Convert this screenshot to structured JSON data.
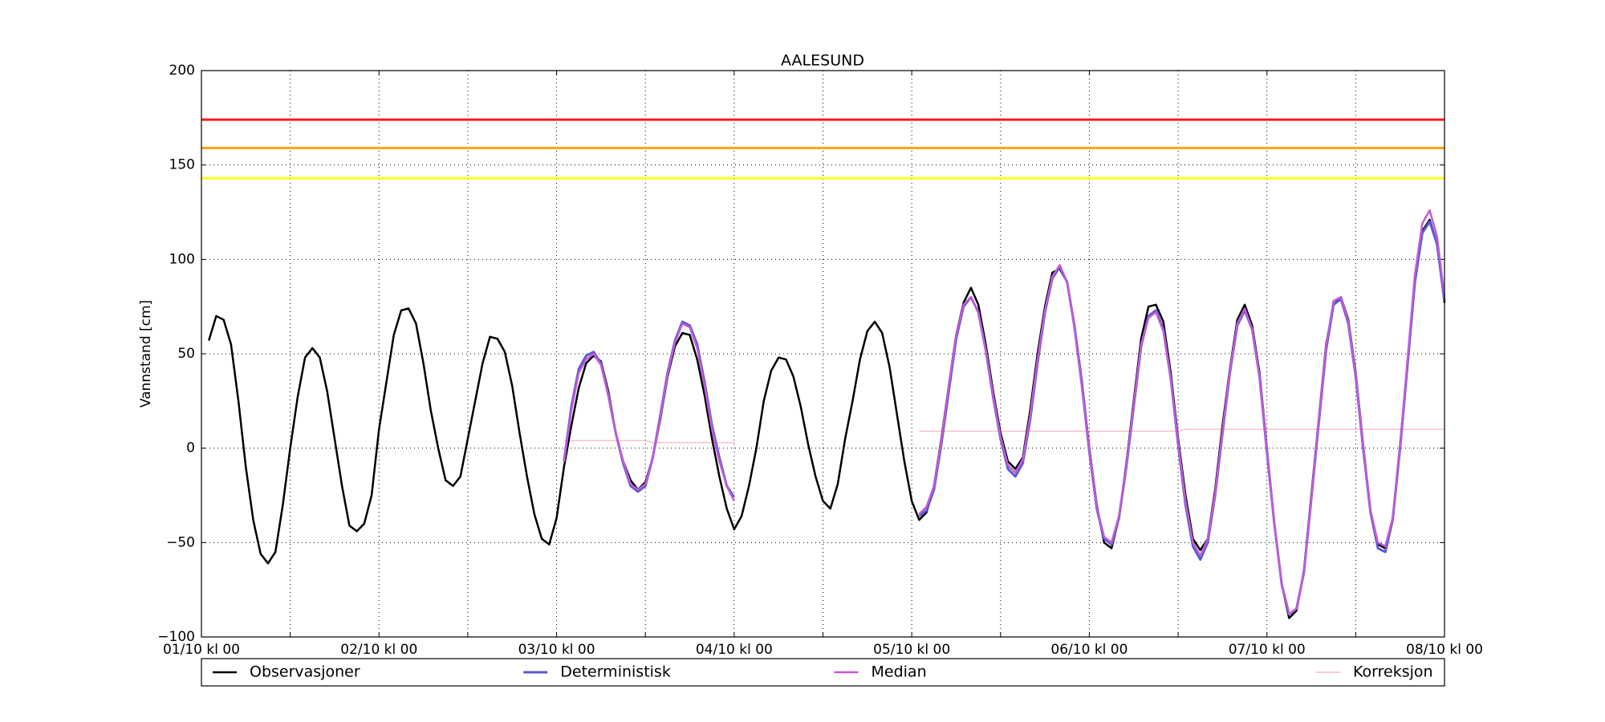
{
  "chart_data": {
    "type": "line",
    "title": "AALESUND",
    "y_label": "Vannstand [cm]",
    "x": [
      1,
      2,
      3,
      4,
      5,
      6,
      7,
      8,
      9,
      10,
      11,
      12,
      13,
      14,
      15,
      16,
      17,
      18,
      19,
      20,
      21,
      22,
      23,
      24,
      25,
      26,
      27,
      28,
      29,
      30,
      31,
      32,
      33,
      34,
      35,
      36,
      37,
      38,
      39,
      40,
      41,
      42,
      43,
      44,
      45,
      46,
      47,
      48,
      49,
      50,
      51,
      52,
      53,
      54,
      55,
      56,
      57,
      58,
      59,
      60,
      61,
      62,
      63,
      64,
      65,
      66,
      67,
      68,
      69,
      70,
      71,
      72,
      73,
      74,
      75,
      76,
      77,
      78,
      79,
      80,
      81,
      82,
      83,
      84,
      85,
      86,
      87,
      88,
      89,
      90,
      91,
      92,
      93,
      94,
      95,
      96,
      97,
      98,
      99,
      100,
      101,
      102,
      103,
      104,
      105,
      106,
      107,
      108,
      109,
      110,
      111,
      112,
      113,
      114,
      115,
      116,
      117,
      118,
      119,
      120,
      121,
      122,
      123,
      124,
      125,
      126,
      127,
      128,
      129,
      130,
      131,
      132,
      133,
      134,
      135,
      136,
      137,
      138,
      139,
      140,
      141,
      142,
      143,
      144,
      145,
      146,
      147,
      148,
      149,
      150,
      151,
      152,
      153,
      154,
      155,
      156,
      157,
      158,
      159,
      160,
      161,
      162,
      163,
      164,
      165,
      166,
      167,
      168
    ],
    "series": [
      {
        "name": "Observasjoner",
        "color": "#000000",
        "width": 2.5,
        "values": [
          57,
          70,
          68,
          55,
          25,
          -10,
          -38,
          -56,
          -61,
          -55,
          -30,
          0,
          27,
          48,
          53,
          48,
          30,
          5,
          -20,
          -41,
          -44,
          -40,
          -25,
          10,
          35,
          60,
          73,
          74,
          66,
          45,
          20,
          0,
          -17,
          -20,
          -15,
          5,
          25,
          45,
          59,
          58,
          51,
          33,
          8,
          -15,
          -35,
          -48,
          -51,
          -37,
          -10,
          12,
          32,
          45,
          49,
          46,
          30,
          8,
          -7,
          -17,
          -22,
          -18,
          -5,
          15,
          38,
          54,
          61,
          60,
          47,
          28,
          5,
          -15,
          -32,
          -43,
          -36,
          -20,
          0,
          25,
          41,
          48,
          47,
          38,
          22,
          2,
          -15,
          -28,
          -32,
          -19,
          5,
          25,
          47,
          62,
          67,
          61,
          43,
          18,
          -7,
          -28,
          -38,
          -34,
          -20,
          5,
          33,
          60,
          77,
          85,
          76,
          55,
          30,
          8,
          -7,
          -11,
          -5,
          20,
          50,
          75,
          93,
          95,
          88,
          65,
          35,
          0,
          -30,
          -50,
          -53,
          -37,
          -8,
          25,
          58,
          75,
          76,
          67,
          40,
          5,
          -25,
          -48,
          -54,
          -48,
          -22,
          12,
          42,
          68,
          76,
          65,
          40,
          0,
          -40,
          -72,
          -90,
          -86,
          -65,
          -25,
          15,
          55,
          76,
          80,
          68,
          40,
          2,
          -33,
          -51,
          -53,
          -37,
          2,
          45,
          90,
          115,
          121,
          108,
          77
        ]
      },
      {
        "name": "Deterministisk",
        "color": "#5a5ad6",
        "width": 3,
        "values": [
          null,
          null,
          null,
          null,
          null,
          null,
          null,
          null,
          null,
          null,
          null,
          null,
          null,
          null,
          null,
          null,
          null,
          null,
          null,
          null,
          null,
          null,
          null,
          null,
          null,
          null,
          null,
          null,
          null,
          null,
          null,
          null,
          null,
          null,
          null,
          null,
          null,
          null,
          null,
          null,
          null,
          null,
          null,
          null,
          null,
          null,
          null,
          null,
          -7,
          22,
          42,
          49,
          51,
          45,
          28,
          8,
          -8,
          -20,
          -23,
          -20,
          -5,
          17,
          40,
          57,
          67,
          65,
          55,
          35,
          12,
          -5,
          -20,
          -26,
          null,
          null,
          null,
          null,
          null,
          null,
          null,
          null,
          null,
          null,
          null,
          null,
          null,
          null,
          null,
          null,
          null,
          null,
          null,
          null,
          null,
          null,
          null,
          null,
          -36,
          -33,
          -22,
          2,
          30,
          58,
          75,
          80,
          72,
          52,
          27,
          5,
          -11,
          -15,
          -8,
          15,
          45,
          72,
          90,
          96,
          88,
          64,
          33,
          -2,
          -32,
          -48,
          -51,
          -37,
          -10,
          22,
          54,
          70,
          73,
          63,
          37,
          2,
          -30,
          -52,
          -59,
          -50,
          -25,
          8,
          40,
          65,
          73,
          63,
          38,
          -2,
          -40,
          -72,
          -88,
          -85,
          -66,
          -27,
          13,
          52,
          76,
          79,
          66,
          38,
          0,
          -34,
          -53,
          -55,
          -38,
          0,
          44,
          88,
          114,
          120,
          108,
          78
        ]
      },
      {
        "name": "Median",
        "color": "#c45ad6",
        "width": 2.5,
        "values": [
          null,
          null,
          null,
          null,
          null,
          null,
          null,
          null,
          null,
          null,
          null,
          null,
          null,
          null,
          null,
          null,
          null,
          null,
          null,
          null,
          null,
          null,
          null,
          null,
          null,
          null,
          null,
          null,
          null,
          null,
          null,
          null,
          null,
          null,
          null,
          null,
          null,
          null,
          null,
          null,
          null,
          null,
          null,
          null,
          null,
          null,
          null,
          null,
          -7,
          20,
          40,
          47,
          50,
          44,
          28,
          8,
          -7,
          -19,
          -22,
          -19,
          -5,
          16,
          39,
          56,
          66,
          64,
          53,
          33,
          10,
          -7,
          -20,
          -28,
          null,
          null,
          null,
          null,
          null,
          null,
          null,
          null,
          null,
          null,
          null,
          null,
          null,
          null,
          null,
          null,
          null,
          null,
          null,
          null,
          null,
          null,
          null,
          null,
          -35,
          -31,
          -20,
          4,
          33,
          60,
          76,
          80,
          72,
          52,
          28,
          6,
          -9,
          -13,
          -6,
          17,
          47,
          73,
          91,
          97,
          88,
          64,
          33,
          -1,
          -31,
          -47,
          -50,
          -36,
          -9,
          23,
          55,
          69,
          72,
          62,
          37,
          3,
          -28,
          -50,
          -57,
          -48,
          -24,
          9,
          41,
          66,
          74,
          63,
          38,
          -1,
          -40,
          -72,
          -88,
          -85,
          -66,
          -27,
          14,
          54,
          78,
          80,
          67,
          39,
          1,
          -33,
          -50,
          -52,
          -37,
          1,
          47,
          92,
          119,
          126,
          112,
          80
        ]
      },
      {
        "name": "Korreksjon",
        "color": "#f7b8c4",
        "width": 1.2,
        "values": [
          null,
          null,
          null,
          null,
          null,
          null,
          null,
          null,
          null,
          null,
          null,
          null,
          null,
          null,
          null,
          null,
          null,
          null,
          null,
          null,
          null,
          null,
          null,
          null,
          null,
          null,
          null,
          null,
          null,
          null,
          null,
          null,
          null,
          null,
          null,
          null,
          null,
          null,
          null,
          null,
          null,
          null,
          null,
          null,
          null,
          null,
          null,
          null,
          4,
          4,
          4,
          4,
          4,
          4,
          4,
          4,
          4,
          4,
          4,
          4,
          3,
          3,
          3,
          3,
          3,
          3,
          3,
          3,
          3,
          3,
          3,
          3,
          null,
          null,
          null,
          null,
          null,
          null,
          null,
          null,
          null,
          null,
          null,
          null,
          null,
          null,
          null,
          null,
          null,
          null,
          null,
          null,
          null,
          null,
          null,
          null,
          9,
          9,
          9,
          9,
          9,
          9,
          9,
          9,
          9,
          9,
          9,
          9,
          9,
          9,
          9,
          9,
          9,
          9,
          9,
          9,
          9,
          9,
          9,
          9,
          9,
          9,
          9,
          9,
          9,
          9,
          9,
          9,
          9,
          9,
          9,
          9,
          10,
          10,
          10,
          10,
          10,
          10,
          10,
          10,
          10,
          10,
          10,
          10,
          10,
          10,
          10,
          10,
          10,
          10,
          10,
          10,
          10,
          10,
          10,
          10,
          10,
          10,
          10,
          10,
          10,
          10,
          10,
          10,
          10,
          10,
          10,
          10
        ]
      }
    ],
    "reference_lines": [
      {
        "value": 174,
        "color": "#ff1a1a"
      },
      {
        "value": 159,
        "color": "#ffa500"
      },
      {
        "value": 143,
        "color": "#ffff1a"
      }
    ],
    "xlim": [
      0,
      168
    ],
    "xticks": [
      {
        "value": 0,
        "label": "01/10 kl 00"
      },
      {
        "value": 24,
        "label": "02/10 kl 00"
      },
      {
        "value": 48,
        "label": "03/10 kl 00"
      },
      {
        "value": 72,
        "label": "04/10 kl 00"
      },
      {
        "value": 96,
        "label": "05/10 kl 00"
      },
      {
        "value": 120,
        "label": "06/10 kl 00"
      },
      {
        "value": 144,
        "label": "07/10 kl 00"
      },
      {
        "value": 168,
        "label": "08/10 kl 00"
      }
    ],
    "x_minor_ticks": [
      12,
      36,
      60,
      84,
      108,
      132,
      156
    ],
    "ylim": [
      -100,
      200
    ],
    "yticks": [
      {
        "value": -100,
        "label": "−100"
      },
      {
        "value": -50,
        "label": "−50"
      },
      0,
      50,
      100,
      150,
      200
    ],
    "grid": true,
    "legend": "bottom"
  }
}
